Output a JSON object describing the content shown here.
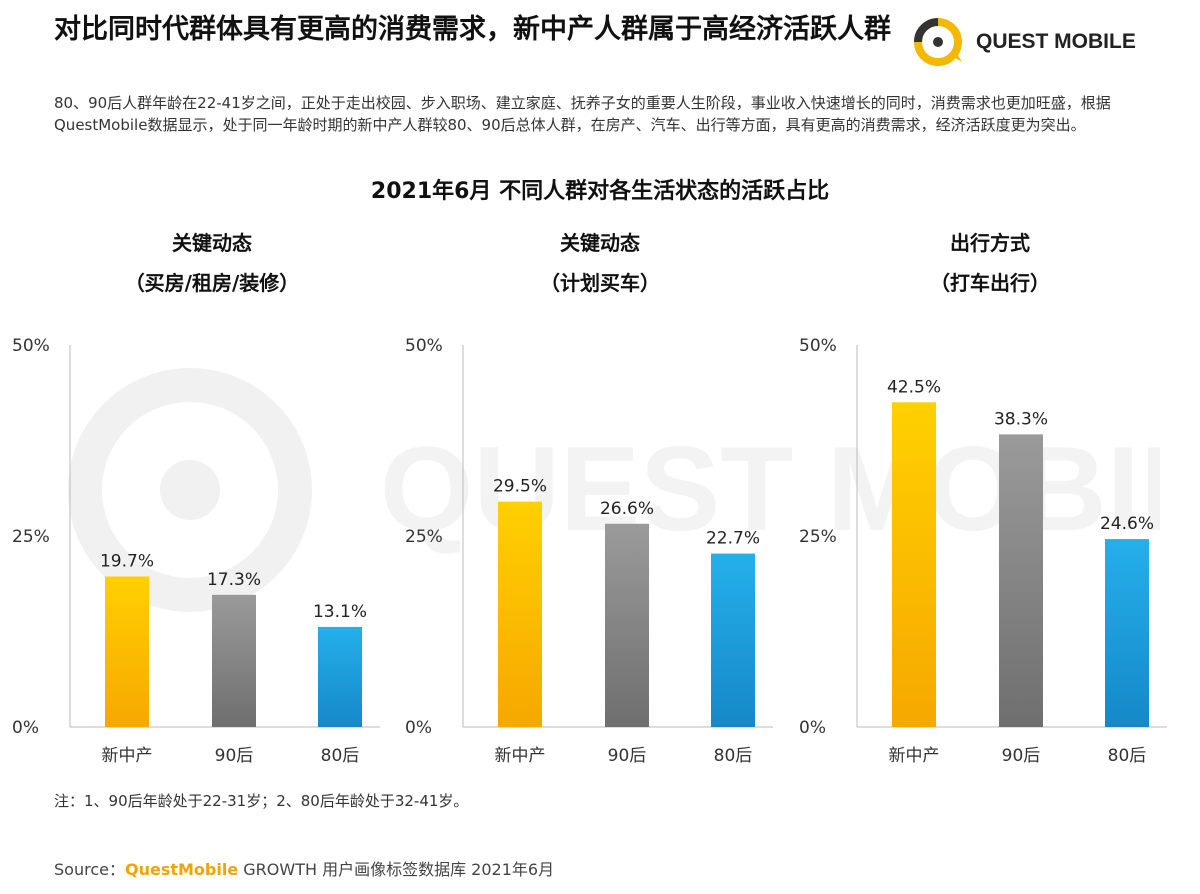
{
  "header": {
    "headline": "对比同时代群体具有更高的消费需求，新中产人群属于高经济活跃人群",
    "logo_text": "QUEST MOBILE"
  },
  "description": "80、90后人群年龄在22-41岁之间，正处于走出校园、步入职场、建立家庭、抚养子女的重要人生阶段，事业收入快速增长的同时，消费需求也更加旺盛，根据QuestMobile数据显示，处于同一年龄时期的新中产人群较80、90后总体人群，在房产、汽车、出行等方面，具有更高的消费需求，经济活跃度更为突出。",
  "chart_title": "2021年6月 不同人群对各生活状态的活跃占比",
  "footer": {
    "note": "注：1、90后年龄处于22-31岁；2、80后年龄处于32-41岁。",
    "source_prefix": "Source：",
    "source_brand": "QuestMobile",
    "source_rest": " GROWTH 用户画像标签数据库 2021年6月"
  },
  "colors": {
    "new_middle": "#f5b800",
    "post90": "#8a8a8a",
    "post80": "#1e9fd8"
  },
  "chart_data": [
    {
      "type": "bar",
      "title_line1": "关键动态",
      "title_line2": "（买房/租房/装修）",
      "categories": [
        "新中产",
        "90后",
        "80后"
      ],
      "values": [
        19.7,
        17.3,
        13.1
      ],
      "value_labels": [
        "19.7%",
        "17.3%",
        "13.1%"
      ],
      "ylim": [
        0,
        50
      ],
      "yticks": [
        "0%",
        "25%",
        "50%"
      ]
    },
    {
      "type": "bar",
      "title_line1": "关键动态",
      "title_line2": "（计划买车）",
      "categories": [
        "新中产",
        "90后",
        "80后"
      ],
      "values": [
        29.5,
        26.6,
        22.7
      ],
      "value_labels": [
        "29.5%",
        "26.6%",
        "22.7%"
      ],
      "ylim": [
        0,
        50
      ],
      "yticks": [
        "0%",
        "25%",
        "50%"
      ]
    },
    {
      "type": "bar",
      "title_line1": "出行方式",
      "title_line2": "（打车出行）",
      "categories": [
        "新中产",
        "90后",
        "80后"
      ],
      "values": [
        42.5,
        38.3,
        24.6
      ],
      "value_labels": [
        "42.5%",
        "38.3%",
        "24.6%"
      ],
      "ylim": [
        0,
        50
      ],
      "yticks": [
        "0%",
        "25%",
        "50%"
      ]
    }
  ]
}
